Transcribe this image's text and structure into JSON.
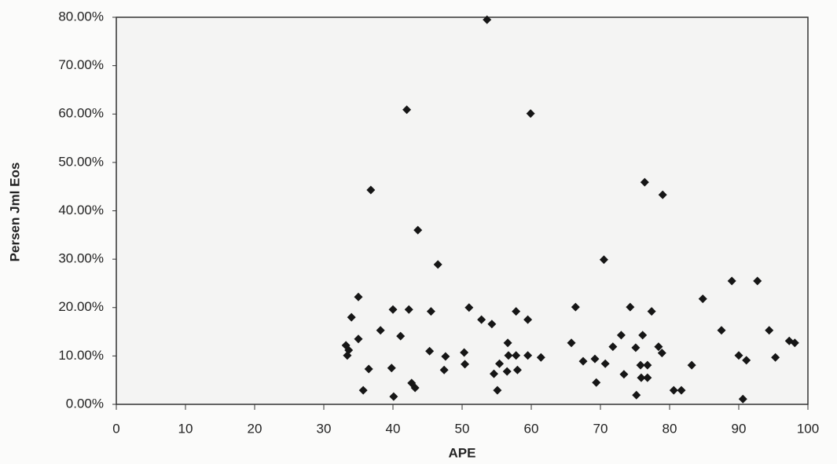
{
  "chart_data": {
    "type": "scatter",
    "x_label": "APE",
    "y_label": "Persen Jml Eos",
    "xlim": [
      0,
      100
    ],
    "ylim": [
      0,
      80
    ],
    "xticks": [
      0,
      10,
      20,
      30,
      40,
      50,
      60,
      70,
      80,
      90,
      100
    ],
    "yticks": [
      {
        "value": 0,
        "label": "0.00%"
      },
      {
        "value": 10,
        "label": "10.00%"
      },
      {
        "value": 20,
        "label": "20.00%"
      },
      {
        "value": 30,
        "label": "30.00%"
      },
      {
        "value": 40,
        "label": "40.00%"
      },
      {
        "value": 50,
        "label": "50.00%"
      },
      {
        "value": 60,
        "label": "60.00%"
      },
      {
        "value": 70,
        "label": "70.00%"
      },
      {
        "value": 80,
        "label": "80.00%"
      }
    ],
    "color": "#161616",
    "x": [
      53.6,
      42.0,
      59.9,
      36.8,
      43.6,
      46.5,
      35.0,
      34.0,
      76.4,
      79.0,
      70.5,
      89.0,
      92.7,
      84.8,
      40.0,
      42.3,
      45.5,
      51.0,
      66.4,
      74.3,
      77.4,
      57.8,
      52.8,
      54.3,
      59.5,
      38.2,
      41.1,
      35.0,
      33.2,
      33.6,
      33.4,
      45.3,
      50.3,
      47.6,
      56.6,
      56.7,
      57.8,
      59.5,
      61.4,
      65.8,
      67.5,
      69.2,
      70.7,
      71.8,
      73.0,
      75.1,
      76.1,
      78.4,
      78.9,
      87.5,
      90.0,
      91.1,
      94.4,
      95.3,
      97.3,
      98.1,
      83.2,
      36.5,
      35.7,
      40.1,
      39.8,
      42.7,
      43.2,
      47.4,
      50.4,
      55.4,
      54.6,
      55.1,
      56.5,
      58.0,
      69.4,
      73.4,
      75.8,
      76.8,
      75.9,
      76.8,
      75.2,
      80.6,
      81.7,
      90.6
    ],
    "values": [
      79.5,
      60.9,
      60.1,
      44.3,
      36.0,
      28.9,
      22.2,
      18.0,
      45.9,
      43.3,
      29.9,
      25.5,
      25.5,
      21.8,
      19.6,
      19.6,
      19.2,
      20.0,
      20.1,
      20.1,
      19.2,
      19.2,
      17.5,
      16.6,
      17.5,
      15.3,
      14.1,
      13.5,
      12.2,
      11.2,
      10.1,
      11.0,
      10.7,
      9.9,
      12.7,
      10.1,
      10.1,
      10.1,
      9.7,
      12.7,
      8.9,
      9.4,
      8.4,
      11.9,
      14.3,
      11.7,
      14.3,
      11.9,
      10.6,
      15.3,
      10.1,
      9.1,
      15.3,
      9.7,
      13.1,
      12.7,
      8.1,
      7.3,
      2.9,
      1.6,
      7.5,
      4.4,
      3.4,
      7.1,
      8.3,
      8.4,
      6.3,
      2.9,
      6.8,
      7.1,
      4.5,
      6.2,
      8.1,
      8.1,
      5.5,
      5.5,
      1.9,
      2.9,
      2.9,
      1.1
    ]
  }
}
